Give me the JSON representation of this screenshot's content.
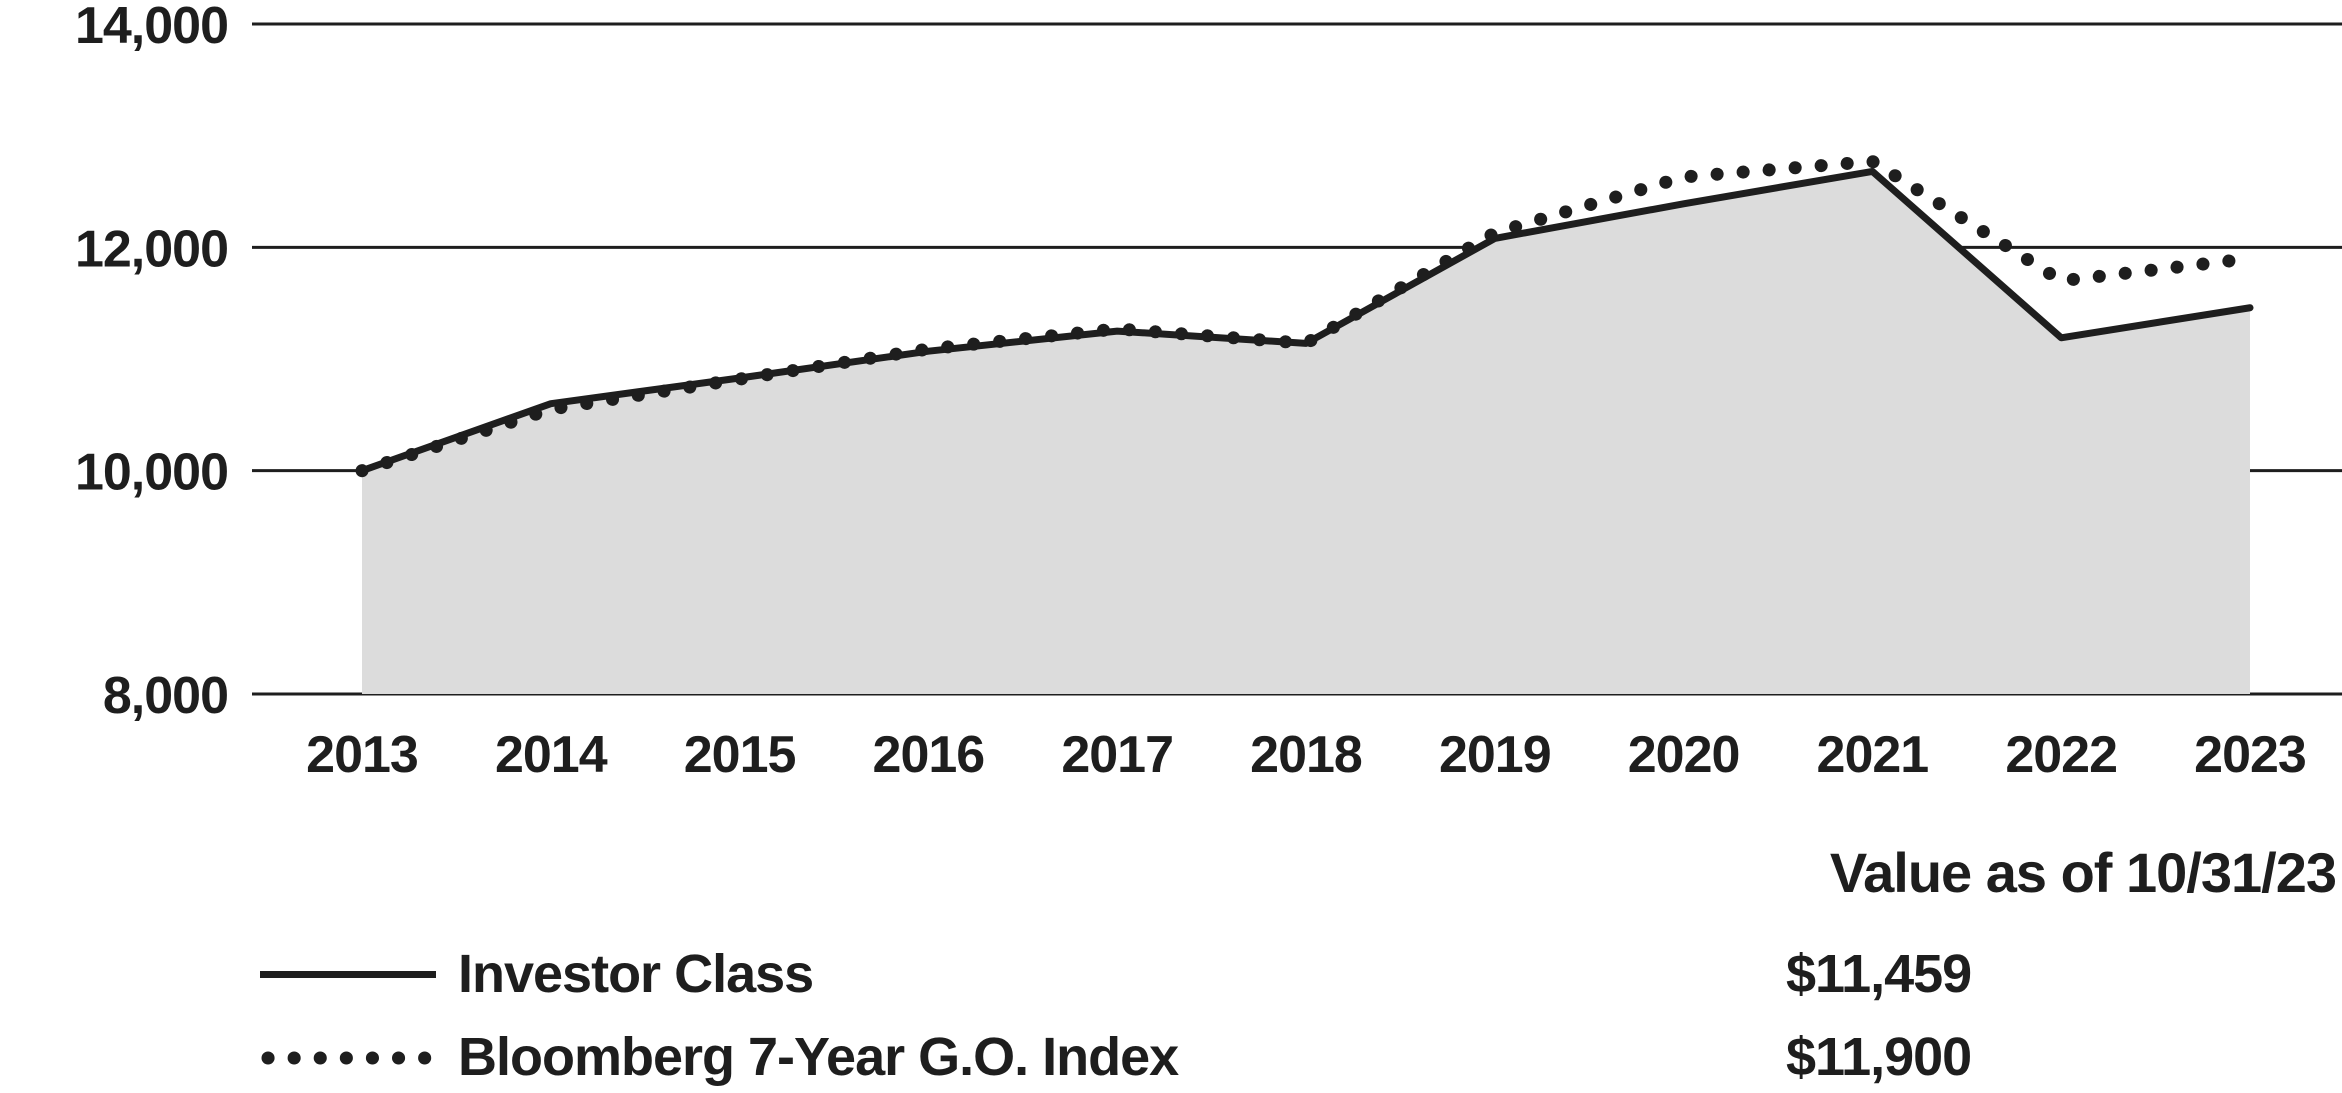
{
  "colors": {
    "ink": "#1e1e1e",
    "area_fill": "#dcdcdc",
    "background": "#ffffff"
  },
  "chart_data": {
    "type": "line",
    "subtype": "area-under-first-series",
    "x": [
      2013,
      2014,
      2015,
      2016,
      2017,
      2018,
      2019,
      2020,
      2021,
      2022,
      2023
    ],
    "ylim": [
      8000,
      14000
    ],
    "yticks": [
      8000,
      10000,
      12000,
      14000
    ],
    "yticklabels": [
      "8,000",
      "10,000",
      "12,000",
      "14,000"
    ],
    "grid": "horizontal-gridlines-on",
    "legend_position": "bottom-left",
    "series": [
      {
        "name": "Investor Class",
        "line_style": "solid",
        "area_fill": true,
        "values": [
          10000,
          10600,
          10830,
          11070,
          11250,
          11140,
          12080,
          12390,
          12680,
          11190,
          11459
        ]
      },
      {
        "name": "Bloomberg 7-Year G.O. Index",
        "line_style": "dotted",
        "area_fill": false,
        "values": [
          10000,
          10550,
          10820,
          11090,
          11270,
          11140,
          12130,
          12630,
          12770,
          11700,
          11900
        ]
      }
    ]
  },
  "legend": {
    "heading": "Value as of 10/31/23",
    "items": [
      {
        "label": "Investor Class",
        "value": "$11,459",
        "swatch": "solid-line"
      },
      {
        "label": "Bloomberg 7-Year G.O. Index",
        "value": "$11,900",
        "swatch": "dotted-line"
      }
    ]
  }
}
